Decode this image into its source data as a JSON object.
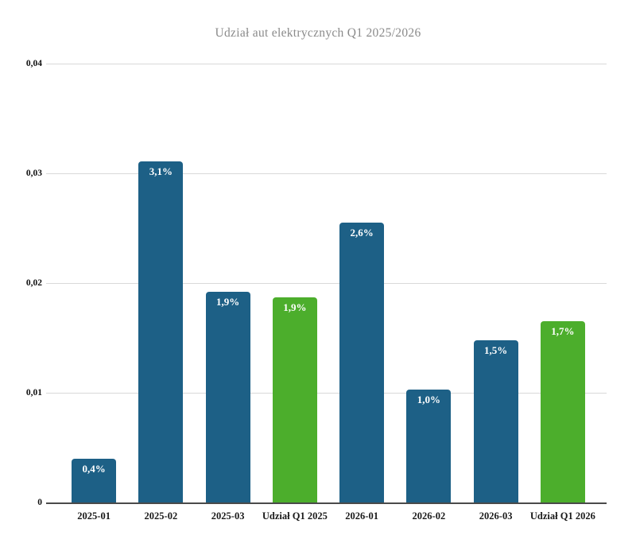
{
  "title": "Udział aut elektrycznych Q1 2025/2026",
  "colors": {
    "background": "#ffffff",
    "bar_blue": "#1d6086",
    "bar_green": "#4cae2c",
    "title_text": "#8a8a8a",
    "axis_line": "#4a4a4a",
    "gridline": "#d9d9d9",
    "tick_text": "#111111",
    "bar_label_text": "#ffffff"
  },
  "chart_data": {
    "type": "bar",
    "title": "Udział aut elektrycznych Q1 2025/2026",
    "categories": [
      "2025-01",
      "2025-02",
      "2025-03",
      "Udział Q1 2025",
      "2026-01",
      "2026-02",
      "2026-03",
      "Udział Q1 2026"
    ],
    "values": [
      0.004,
      0.0311,
      0.0192,
      0.0187,
      0.0255,
      0.0103,
      0.0148,
      0.0165
    ],
    "bar_labels": [
      "0,4%",
      "3,1%",
      "1,9%",
      "1,9%",
      "2,6%",
      "1,0%",
      "1,5%",
      "1,7%"
    ],
    "bar_color_keys": [
      "blue",
      "blue",
      "blue",
      "green",
      "blue",
      "blue",
      "blue",
      "green"
    ],
    "xlabel": "",
    "ylabel": "",
    "ylim": [
      0,
      0.04
    ],
    "yticks": [
      "0",
      "0,01",
      "0,02",
      "0,03",
      "0,04"
    ],
    "decimal_separator": ",",
    "grid": "horizontal",
    "legend": "none"
  }
}
